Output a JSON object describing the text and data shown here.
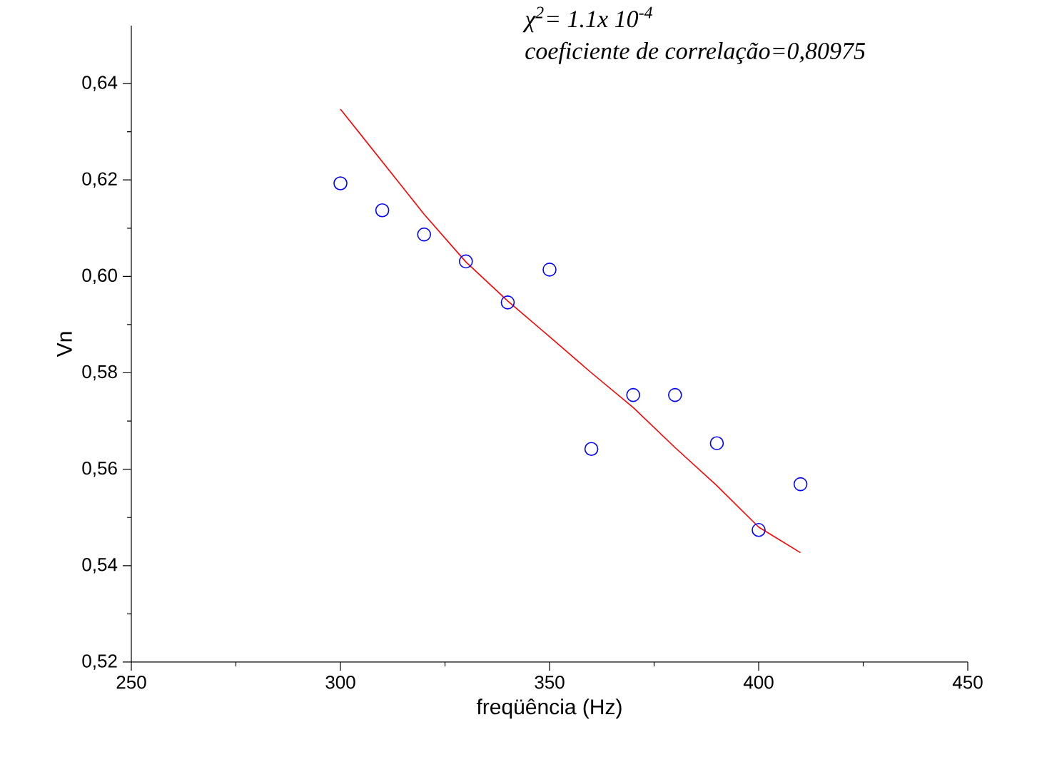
{
  "chart_data": {
    "type": "scatter",
    "xlabel": "freqüência (Hz)",
    "ylabel": "Vn",
    "xlim": [
      250,
      450
    ],
    "ylim": [
      0.52,
      0.652
    ],
    "xticks": [
      250,
      300,
      350,
      400,
      450
    ],
    "yticks": [
      {
        "value": 0.52,
        "label": "0,52"
      },
      {
        "value": 0.54,
        "label": "0,54"
      },
      {
        "value": 0.56,
        "label": "0,56"
      },
      {
        "value": 0.58,
        "label": "0,58"
      },
      {
        "value": 0.6,
        "label": "0,60"
      },
      {
        "value": 0.62,
        "label": "0,62"
      },
      {
        "value": 0.64,
        "label": "0,64"
      }
    ],
    "marker": "circle",
    "annotations": [
      "*χ*$^{2}$= 1.1x 10$^{-4}$",
      "coeficiente de correlação=0,80975"
    ],
    "series": [
      {
        "color": "#0000ff",
        "x": [
          300,
          310,
          320,
          330,
          340,
          350,
          360,
          370,
          380,
          390,
          400,
          410
        ],
        "values": [
          0.6193,
          0.6137,
          0.6087,
          0.6031,
          0.5946,
          0.6014,
          0.5642,
          0.5754,
          0.5754,
          0.5654,
          0.5474,
          0.5569
        ]
      },
      {
        "type": "line",
        "color": "#ff0000",
        "marker": "none",
        "line_style": "solid",
        "x": [
          300,
          310,
          320,
          330,
          340,
          350,
          360,
          370,
          380,
          390,
          400,
          410
        ],
        "values": [
          0.6347,
          0.6238,
          0.6129,
          0.603,
          0.5949,
          0.5875,
          0.58,
          0.5728,
          0.5645,
          0.5566,
          0.548,
          0.5427
        ]
      }
    ]
  }
}
